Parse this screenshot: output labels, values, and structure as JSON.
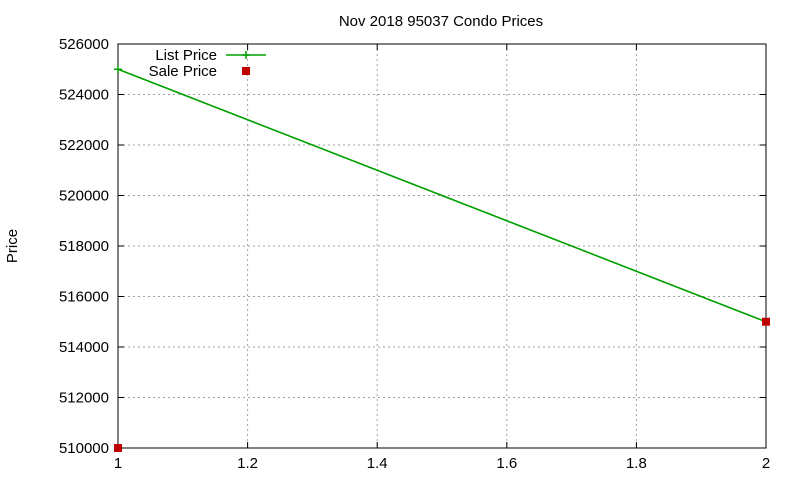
{
  "chart_data": {
    "type": "line",
    "title": "Nov 2018 95037 Condo Prices",
    "xlabel": "",
    "ylabel": "Price",
    "xlim": [
      1,
      2
    ],
    "ylim": [
      510000,
      526000
    ],
    "x_ticks": [
      "1",
      "1.2",
      "1.4",
      "1.6",
      "1.8",
      "2"
    ],
    "x_tick_values": [
      1,
      1.2,
      1.4,
      1.6,
      1.8,
      2
    ],
    "y_ticks": [
      "510000",
      "512000",
      "514000",
      "516000",
      "518000",
      "520000",
      "522000",
      "524000",
      "526000"
    ],
    "y_tick_values": [
      510000,
      512000,
      514000,
      516000,
      518000,
      520000,
      522000,
      524000,
      526000
    ],
    "grid": true,
    "legend_position": "top-left",
    "series": [
      {
        "name": "List Price",
        "style": "linespoints",
        "marker": "plus",
        "color": "#00a000",
        "x": [
          1,
          2
        ],
        "y": [
          525000,
          515000
        ]
      },
      {
        "name": "Sale Price",
        "style": "points",
        "marker": "square",
        "color": "#c00000",
        "x": [
          1,
          2
        ],
        "y": [
          510000,
          515000
        ]
      }
    ]
  }
}
